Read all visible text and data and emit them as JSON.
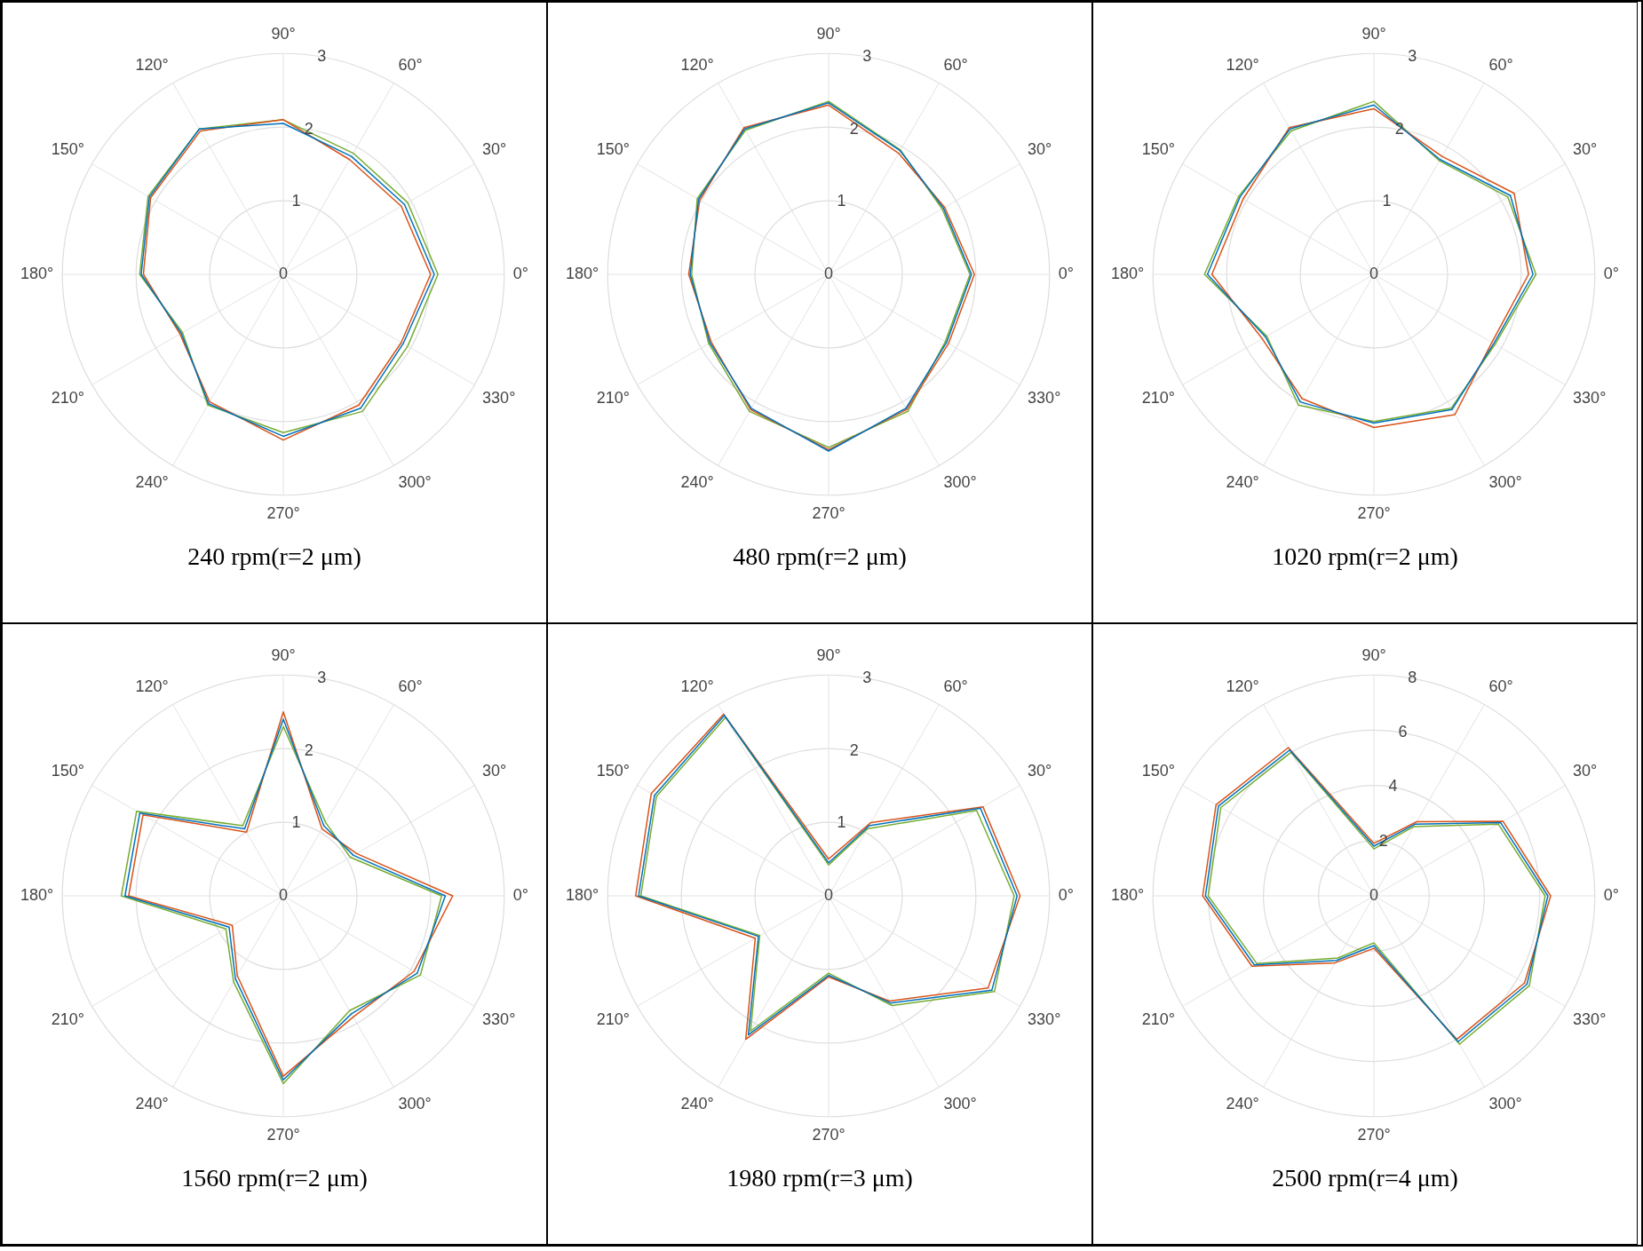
{
  "chart_data": [
    {
      "type": "radar",
      "title": "240 rpm(r=2 μm)",
      "categories": [
        "90°",
        "60°",
        "30°",
        "0°",
        "330°",
        "300°",
        "270°",
        "240°",
        "210°",
        "180°",
        "150°",
        "120°"
      ],
      "ylim": [
        0,
        3
      ],
      "yticks": [
        0,
        1,
        2,
        3
      ],
      "grid": true,
      "series": [
        {
          "color": "#0072bd",
          "values": [
            2.05,
            1.85,
            1.9,
            2.05,
            1.88,
            2.1,
            2.2,
            2.03,
            1.6,
            1.93,
            2.1,
            2.28
          ]
        },
        {
          "color": "#d95319",
          "values": [
            2.1,
            1.8,
            1.85,
            2.0,
            1.85,
            2.05,
            2.25,
            2.0,
            1.62,
            1.9,
            2.08,
            2.25
          ]
        },
        {
          "color": "#77ac30",
          "values": [
            2.1,
            1.9,
            1.95,
            2.1,
            1.95,
            2.15,
            2.15,
            2.05,
            1.58,
            1.95,
            2.12,
            2.28
          ]
        }
      ]
    },
    {
      "type": "radar",
      "title": "480 rpm(r=2 μm)",
      "categories": [
        "90°",
        "60°",
        "30°",
        "0°",
        "330°",
        "300°",
        "270°",
        "240°",
        "210°",
        "180°",
        "150°",
        "120°"
      ],
      "ylim": [
        0,
        3
      ],
      "yticks": [
        0,
        1,
        2,
        3
      ],
      "grid": true,
      "series": [
        {
          "color": "#0072bd",
          "values": [
            2.33,
            1.94,
            1.8,
            1.94,
            1.85,
            2.1,
            2.4,
            2.1,
            1.86,
            1.88,
            2.04,
            2.28
          ]
        },
        {
          "color": "#d95319",
          "values": [
            2.3,
            1.9,
            1.82,
            1.98,
            1.88,
            2.12,
            2.38,
            2.12,
            1.84,
            1.9,
            2.02,
            2.3
          ]
        },
        {
          "color": "#77ac30",
          "values": [
            2.35,
            1.95,
            1.78,
            1.92,
            1.83,
            2.15,
            2.35,
            2.15,
            1.88,
            1.86,
            2.06,
            2.26
          ]
        }
      ]
    },
    {
      "type": "radar",
      "title": "1020 rpm(r=2 μm)",
      "categories": [
        "90°",
        "60°",
        "30°",
        "0°",
        "330°",
        "300°",
        "270°",
        "240°",
        "210°",
        "180°",
        "150°",
        "120°"
      ],
      "ylim": [
        0,
        3
      ],
      "yticks": [
        0,
        1,
        2,
        3
      ],
      "grid": true,
      "series": [
        {
          "color": "#0072bd",
          "values": [
            2.3,
            1.8,
            2.14,
            2.16,
            1.88,
            2.12,
            2.02,
            2.0,
            1.7,
            2.26,
            2.1,
            2.28
          ]
        },
        {
          "color": "#d95319",
          "values": [
            2.25,
            1.85,
            2.2,
            2.1,
            1.85,
            2.2,
            2.08,
            1.95,
            1.75,
            2.2,
            2.05,
            2.3
          ]
        },
        {
          "color": "#77ac30",
          "values": [
            2.35,
            1.78,
            2.1,
            2.2,
            1.9,
            2.1,
            2.0,
            2.05,
            1.68,
            2.3,
            2.12,
            2.25
          ]
        }
      ]
    },
    {
      "type": "radar",
      "title": "1560 rpm(r=2 μm)",
      "categories": [
        "90°",
        "60°",
        "30°",
        "0°",
        "330°",
        "300°",
        "270°",
        "240°",
        "210°",
        "180°",
        "150°",
        "120°"
      ],
      "ylim": [
        0,
        3
      ],
      "yticks": [
        0,
        1,
        2,
        3
      ],
      "grid": true,
      "series": [
        {
          "color": "#0072bd",
          "values": [
            2.4,
            1.1,
            1.1,
            2.2,
            2.1,
            1.85,
            2.5,
            1.3,
            0.85,
            2.15,
            2.25,
            1.05
          ]
        },
        {
          "color": "#d95319",
          "values": [
            2.5,
            1.05,
            1.15,
            2.3,
            2.05,
            1.9,
            2.45,
            1.25,
            0.8,
            2.1,
            2.2,
            1.0
          ]
        },
        {
          "color": "#77ac30",
          "values": [
            2.3,
            1.15,
            1.05,
            2.15,
            2.15,
            1.8,
            2.55,
            1.35,
            0.9,
            2.2,
            2.3,
            1.1
          ]
        }
      ]
    },
    {
      "type": "radar",
      "title": "1980 rpm(r=3 μm)",
      "categories": [
        "90°",
        "60°",
        "30°",
        "0°",
        "330°",
        "300°",
        "270°",
        "240°",
        "210°",
        "180°",
        "150°",
        "120°"
      ],
      "ylim": [
        0,
        3
      ],
      "yticks": [
        0,
        1,
        2,
        3
      ],
      "grid": true,
      "series": [
        {
          "color": "#0072bd",
          "values": [
            0.45,
            1.1,
            2.38,
            2.56,
            2.56,
            1.68,
            1.08,
            2.18,
            1.1,
            2.58,
            2.73,
            2.83
          ]
        },
        {
          "color": "#d95319",
          "values": [
            0.5,
            1.15,
            2.42,
            2.6,
            2.5,
            1.65,
            1.1,
            2.25,
            1.15,
            2.62,
            2.78,
            2.85
          ]
        },
        {
          "color": "#77ac30",
          "values": [
            0.42,
            1.05,
            2.32,
            2.52,
            2.6,
            1.72,
            1.05,
            2.12,
            1.08,
            2.55,
            2.7,
            2.8
          ]
        }
      ]
    },
    {
      "type": "radar",
      "title": "2500 rpm(r=4 μm)",
      "categories": [
        "90°",
        "60°",
        "30°",
        "0°",
        "330°",
        "300°",
        "270°",
        "240°",
        "210°",
        "180°",
        "150°",
        "120°"
      ],
      "ylim": [
        0,
        8
      ],
      "yticks": [
        0,
        2,
        4,
        6,
        8
      ],
      "grid": true,
      "series": [
        {
          "color": "#0072bd",
          "values": [
            1.8,
            3.0,
            5.3,
            6.3,
            6.4,
            6.1,
            1.8,
            2.7,
            5.0,
            6.1,
            6.5,
            6.1
          ]
        },
        {
          "color": "#d95319",
          "values": [
            1.9,
            3.1,
            5.4,
            6.4,
            6.3,
            6.0,
            1.9,
            2.8,
            5.1,
            6.2,
            6.6,
            6.2
          ]
        },
        {
          "color": "#77ac30",
          "values": [
            1.7,
            2.9,
            5.2,
            6.2,
            6.5,
            6.2,
            1.7,
            2.6,
            4.9,
            6.0,
            6.4,
            6.0
          ]
        }
      ]
    }
  ]
}
